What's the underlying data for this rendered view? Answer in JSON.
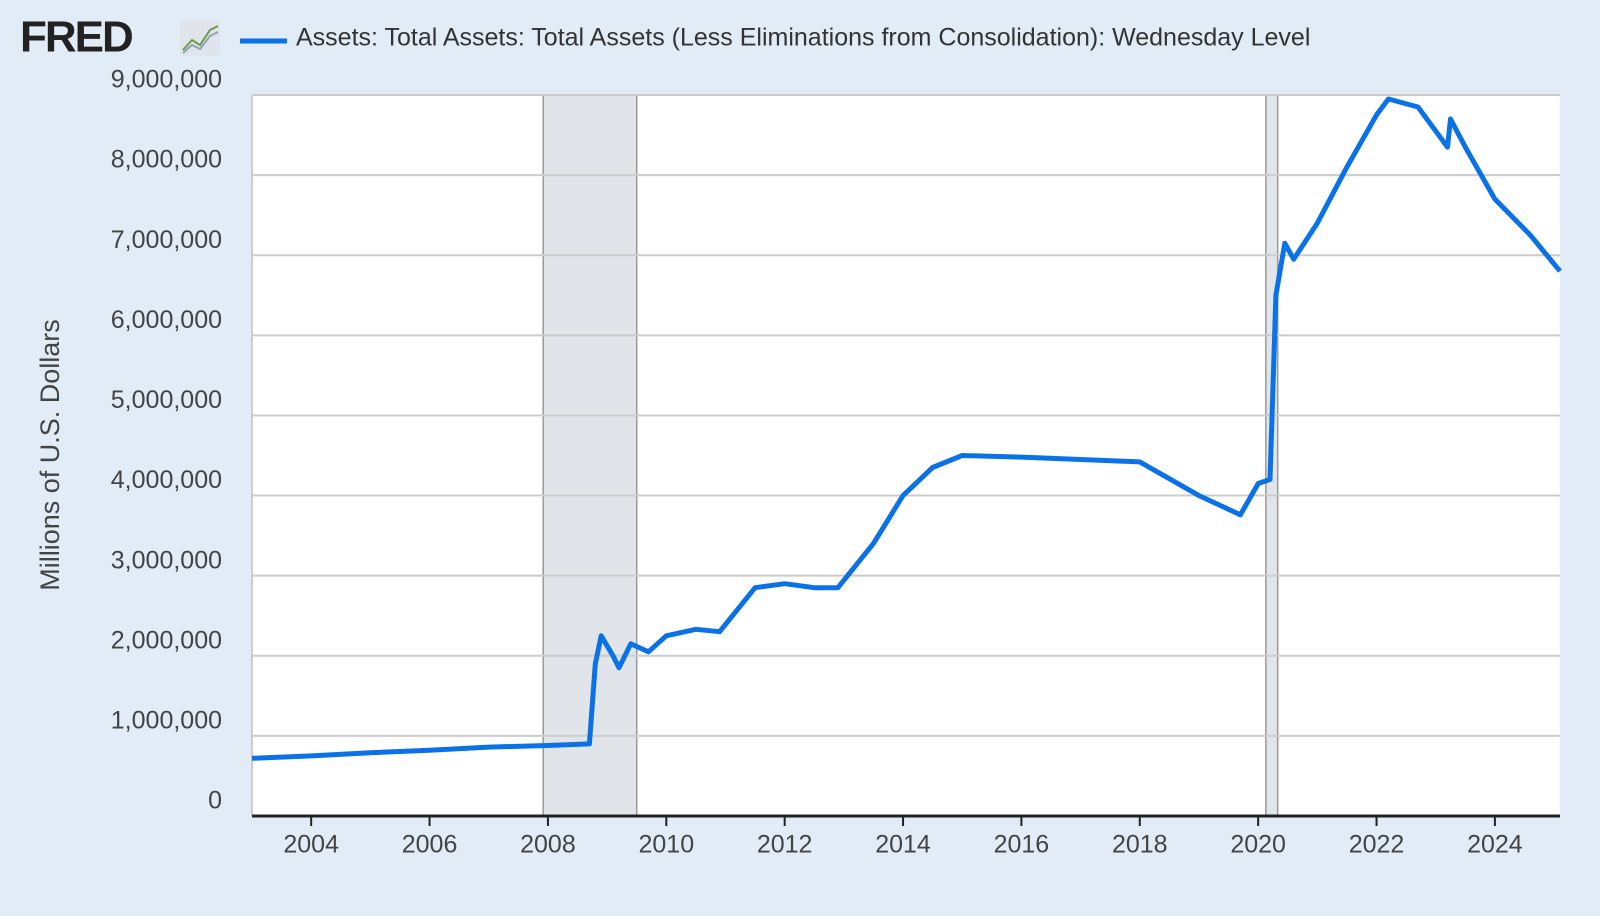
{
  "logo": "FRED",
  "chart_data": {
    "type": "line",
    "y_label": "Millions of U.S. Dollars",
    "x": [
      2003.0,
      2004,
      2005,
      2006,
      2007,
      2008,
      2008.7,
      2008.8,
      2008.9,
      2009.1,
      2009.2,
      2009.4,
      2009.7,
      2010,
      2010.5,
      2010.9,
      2011.5,
      2012,
      2012.5,
      2012.9,
      2013.5,
      2014,
      2014.5,
      2015,
      2016,
      2017,
      2018,
      2019,
      2019.7,
      2020.0,
      2020.2,
      2020.3,
      2020.45,
      2020.6,
      2021,
      2021.5,
      2022,
      2022.2,
      2022.7,
      2023.2,
      2023.25,
      2023.5,
      2024,
      2024.6,
      2025.1
    ],
    "series": [
      {
        "name": "Assets: Total Assets: Total Assets (Less Eliminations from Consolidation): Wednesday Level",
        "color": "#0a72e6",
        "values": [
          720000,
          750000,
          790000,
          820000,
          860000,
          880000,
          900000,
          1900000,
          2250000,
          2000000,
          1850000,
          2150000,
          2050000,
          2250000,
          2330000,
          2300000,
          2850000,
          2900000,
          2850000,
          2850000,
          3400000,
          4000000,
          4350000,
          4500000,
          4480000,
          4450000,
          4420000,
          4000000,
          3760000,
          4150000,
          4200000,
          6500000,
          7150000,
          6950000,
          7400000,
          8100000,
          8750000,
          8950000,
          8850000,
          8350000,
          8700000,
          8350000,
          7700000,
          7250000,
          6800000
        ]
      }
    ],
    "recessions": [
      [
        2007.92,
        2009.5
      ],
      [
        2020.13,
        2020.33
      ]
    ],
    "xlim": [
      2003.0,
      2025.1
    ],
    "xticks": [
      2004,
      2006,
      2008,
      2010,
      2012,
      2014,
      2016,
      2018,
      2020,
      2022,
      2024
    ],
    "ylim": [
      0,
      9000000
    ],
    "yticks": [
      0,
      {
        "value": 1000000,
        "label": "1,000,000"
      },
      {
        "value": 2000000,
        "label": "2,000,000"
      },
      {
        "value": 3000000,
        "label": "3,000,000"
      },
      {
        "value": 4000000,
        "label": "4,000,000"
      },
      {
        "value": 5000000,
        "label": "5,000,000"
      },
      {
        "value": 6000000,
        "label": "6,000,000"
      },
      {
        "value": 7000000,
        "label": "7,000,000"
      },
      {
        "value": 8000000,
        "label": "8,000,000"
      },
      {
        "value": 9000000,
        "label": "9,000,000"
      }
    ],
    "grid": true
  }
}
